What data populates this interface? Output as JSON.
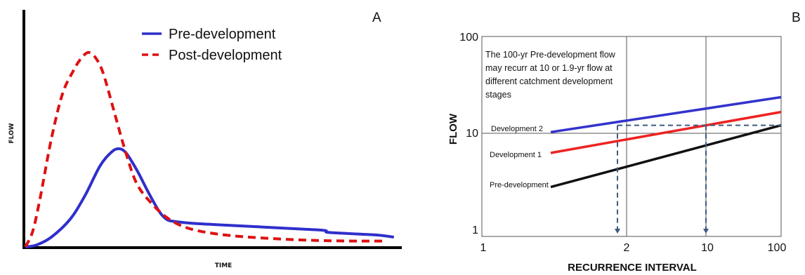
{
  "chart_data": [
    {
      "panel": "A",
      "type": "line",
      "xlabel": "TIME",
      "ylabel": "FLOW",
      "xlim": [
        0,
        100
      ],
      "ylim": [
        0,
        100
      ],
      "grid": false,
      "legend_position": "top-center",
      "series": [
        {
          "name": "Pre-development",
          "color": "#2f2fcc",
          "style": "solid",
          "x": [
            0,
            3,
            7,
            12,
            16,
            20,
            23,
            25,
            27,
            30,
            33,
            36,
            38,
            40,
            45,
            55,
            70,
            80,
            81,
            85,
            90,
            95,
            99
          ],
          "y": [
            0,
            1,
            5,
            14,
            26,
            41,
            48,
            50,
            48,
            39,
            28,
            18,
            14,
            13,
            12,
            11,
            9.5,
            8.5,
            7.5,
            7,
            6.5,
            6,
            5
          ]
        },
        {
          "name": "Post-development",
          "color": "#dd1111",
          "style": "dashed",
          "x": [
            0,
            2,
            4,
            7,
            10,
            13,
            15,
            17,
            19,
            21,
            24,
            27,
            30,
            34,
            38,
            43,
            50,
            60,
            75,
            88,
            96
          ],
          "y": [
            0,
            8,
            25,
            55,
            78,
            90,
            96,
            99,
            96,
            88,
            68,
            48,
            32,
            22,
            15,
            10,
            7,
            5,
            3.5,
            3,
            3
          ]
        }
      ]
    },
    {
      "panel": "B",
      "type": "line",
      "xlabel": "RECURRENCE INTERVAL",
      "ylabel": "FLOW",
      "x_tick_labels": [
        "1",
        "2",
        "10",
        "100"
      ],
      "y_tick_labels": [
        "100",
        "10",
        "1"
      ],
      "y_scale": "log",
      "ylim": [
        1,
        100
      ],
      "grid": true,
      "annotation": [
        "The 100-yr Pre-development flow",
        "may recurr at 10 or 1.9-yr flow at",
        "different catchment development",
        "stages"
      ],
      "series": [
        {
          "name": "Development 2",
          "color": "#3333cc",
          "x_pos": [
            0.23,
            1.0
          ],
          "flow": [
            10.2,
            23.5
          ]
        },
        {
          "name": "Development 1",
          "color": "#ee2222",
          "x_pos": [
            0.23,
            1.0
          ],
          "flow": [
            6.2,
            16.5
          ]
        },
        {
          "name": "Pre-development",
          "color": "#111111",
          "x_pos": [
            0.23,
            1.0
          ],
          "flow": [
            2.75,
            12.0
          ]
        }
      ],
      "reference_lines": {
        "flow_level": 12.0,
        "dashed_color": "#3d5a80",
        "drop_points": [
          "1.9-yr",
          "10-yr"
        ]
      }
    }
  ]
}
